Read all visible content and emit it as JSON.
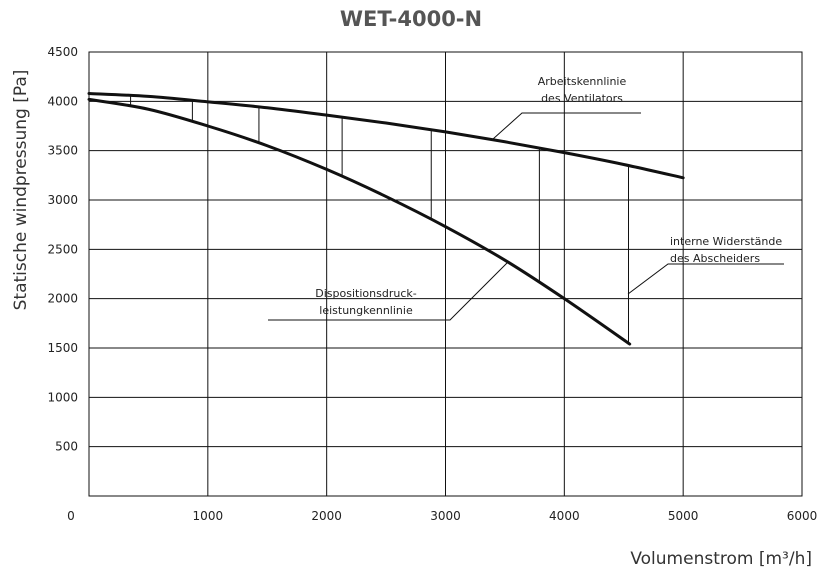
{
  "chart_data": {
    "type": "line",
    "title": "WET-4000-N",
    "xlabel": "Volumenstrom [m³/h]",
    "ylabel": "Statische windpressung [Pa]",
    "xlim": [
      0,
      6000
    ],
    "ylim": [
      0,
      4500
    ],
    "xticks": [
      "0",
      "1000",
      "2000",
      "3000",
      "4000",
      "5000",
      "6000"
    ],
    "yticks": [
      "500",
      "1000",
      "1500",
      "2000",
      "2500",
      "3000",
      "3500",
      "4000",
      "4500"
    ],
    "grid": true,
    "series": [
      {
        "x": [
          0,
          500,
          1000,
          1500,
          2000,
          2500,
          3000,
          3500,
          4000,
          4500,
          5000
        ],
        "y": [
          4080,
          4050,
          3995,
          3935,
          3860,
          3780,
          3690,
          3590,
          3480,
          3360,
          3225
        ]
      },
      {
        "x": [
          0,
          500,
          1000,
          1500,
          2000,
          2500,
          3000,
          3500,
          4000,
          4550
        ],
        "y": [
          4020,
          3920,
          3750,
          3550,
          3310,
          3035,
          2730,
          2390,
          2000,
          1540
        ]
      }
    ],
    "internal_resistance_markers_x": [
      350,
      870,
      1430,
      2130,
      2880,
      3790,
      4540
    ],
    "annotations": [
      {
        "lines": [
          "Arbeitskennlinie",
          "des Ventilators"
        ]
      },
      {
        "lines": [
          "Dispositionsdruck-",
          "leistungkennlinie"
        ]
      },
      {
        "lines": [
          "interne Widerstände",
          "des Abscheiders"
        ]
      }
    ]
  }
}
